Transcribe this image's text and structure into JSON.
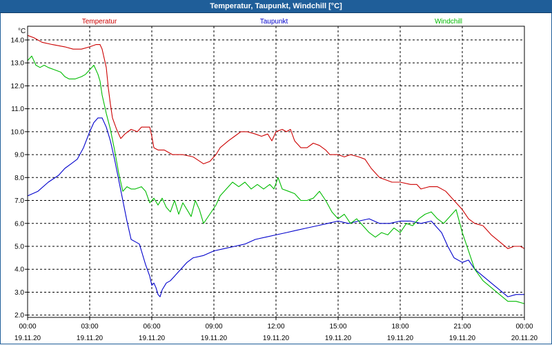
{
  "window": {
    "title": "Temperatur, Taupunkt, Windchill [°C]"
  },
  "chart_data": {
    "type": "line",
    "title": "Temperatur, Taupunkt, Windchill [°C]",
    "ylabel": "°C",
    "ylim": [
      1.9,
      14.6
    ],
    "yticks": [
      2.0,
      3.0,
      4.0,
      5.0,
      6.0,
      7.0,
      8.0,
      9.0,
      10.0,
      11.0,
      12.0,
      13.0,
      14.0
    ],
    "xlim": [
      0,
      24
    ],
    "xticks": [
      {
        "x": 0,
        "time": "00:00",
        "date": "19.11.20"
      },
      {
        "x": 3,
        "time": "03:00",
        "date": "19.11.20"
      },
      {
        "x": 6,
        "time": "06:00",
        "date": "19.11.20"
      },
      {
        "x": 9,
        "time": "09:00",
        "date": "19.11.20"
      },
      {
        "x": 12,
        "time": "12:00",
        "date": "19.11.20"
      },
      {
        "x": 15,
        "time": "15:00",
        "date": "19.11.20"
      },
      {
        "x": 18,
        "time": "18:00",
        "date": "19.11.20"
      },
      {
        "x": 21,
        "time": "21:00",
        "date": "19.11.20"
      },
      {
        "x": 24,
        "time": "00:00",
        "date": "20.11.20"
      }
    ],
    "grid": true,
    "series": [
      {
        "name": "Temperatur",
        "color": "#cc0000",
        "points": [
          [
            0,
            14.2
          ],
          [
            0.3,
            14.1
          ],
          [
            0.7,
            13.9
          ],
          [
            1.2,
            13.8
          ],
          [
            1.8,
            13.7
          ],
          [
            2.2,
            13.6
          ],
          [
            2.6,
            13.6
          ],
          [
            3.0,
            13.7
          ],
          [
            3.3,
            13.8
          ],
          [
            3.5,
            13.8
          ],
          [
            3.6,
            13.6
          ],
          [
            3.8,
            12.8
          ],
          [
            3.9,
            11.9
          ],
          [
            4.0,
            11.2
          ],
          [
            4.1,
            10.6
          ],
          [
            4.3,
            10.1
          ],
          [
            4.5,
            9.7
          ],
          [
            4.7,
            9.9
          ],
          [
            5.0,
            10.1
          ],
          [
            5.3,
            10.0
          ],
          [
            5.5,
            10.2
          ],
          [
            5.7,
            10.2
          ],
          [
            5.9,
            10.2
          ],
          [
            6.0,
            9.8
          ],
          [
            6.1,
            9.3
          ],
          [
            6.3,
            9.2
          ],
          [
            6.6,
            9.2
          ],
          [
            7.0,
            9.0
          ],
          [
            7.5,
            9.0
          ],
          [
            8.0,
            8.9
          ],
          [
            8.5,
            8.6
          ],
          [
            8.8,
            8.7
          ],
          [
            9.1,
            9.0
          ],
          [
            9.3,
            9.3
          ],
          [
            9.7,
            9.6
          ],
          [
            10.0,
            9.8
          ],
          [
            10.3,
            10.0
          ],
          [
            10.6,
            10.0
          ],
          [
            11.0,
            9.9
          ],
          [
            11.3,
            9.8
          ],
          [
            11.6,
            9.9
          ],
          [
            11.8,
            9.6
          ],
          [
            12.0,
            10.0
          ],
          [
            12.3,
            10.1
          ],
          [
            12.5,
            10.0
          ],
          [
            12.7,
            10.1
          ],
          [
            12.9,
            9.6
          ],
          [
            13.2,
            9.3
          ],
          [
            13.5,
            9.3
          ],
          [
            13.8,
            9.5
          ],
          [
            14.1,
            9.4
          ],
          [
            14.4,
            9.2
          ],
          [
            14.6,
            9.0
          ],
          [
            15.0,
            9.0
          ],
          [
            15.3,
            8.9
          ],
          [
            15.6,
            9.0
          ],
          [
            16.0,
            8.9
          ],
          [
            16.3,
            8.8
          ],
          [
            16.6,
            8.4
          ],
          [
            17.0,
            8.0
          ],
          [
            17.3,
            7.9
          ],
          [
            17.6,
            7.8
          ],
          [
            18.0,
            7.8
          ],
          [
            18.5,
            7.7
          ],
          [
            18.8,
            7.7
          ],
          [
            19.0,
            7.5
          ],
          [
            19.4,
            7.6
          ],
          [
            19.8,
            7.6
          ],
          [
            20.2,
            7.4
          ],
          [
            20.6,
            7.0
          ],
          [
            21.0,
            6.6
          ],
          [
            21.3,
            6.2
          ],
          [
            21.6,
            6.0
          ],
          [
            22.0,
            5.9
          ],
          [
            22.4,
            5.5
          ],
          [
            22.8,
            5.2
          ],
          [
            23.2,
            4.9
          ],
          [
            23.5,
            5.0
          ],
          [
            23.8,
            5.0
          ],
          [
            24.0,
            4.9
          ]
        ]
      },
      {
        "name": "Taupunkt",
        "color": "#0000cc",
        "points": [
          [
            0,
            7.2
          ],
          [
            0.5,
            7.4
          ],
          [
            1.0,
            7.8
          ],
          [
            1.5,
            8.1
          ],
          [
            1.8,
            8.4
          ],
          [
            2.1,
            8.6
          ],
          [
            2.4,
            8.8
          ],
          [
            2.7,
            9.3
          ],
          [
            3.0,
            10.0
          ],
          [
            3.2,
            10.4
          ],
          [
            3.4,
            10.6
          ],
          [
            3.6,
            10.6
          ],
          [
            3.8,
            10.2
          ],
          [
            4.0,
            9.6
          ],
          [
            4.2,
            8.8
          ],
          [
            4.4,
            7.9
          ],
          [
            4.6,
            7.0
          ],
          [
            4.8,
            6.1
          ],
          [
            5.0,
            5.3
          ],
          [
            5.2,
            5.2
          ],
          [
            5.4,
            5.1
          ],
          [
            5.5,
            4.8
          ],
          [
            5.7,
            4.2
          ],
          [
            5.9,
            3.7
          ],
          [
            6.0,
            3.3
          ],
          [
            6.1,
            3.4
          ],
          [
            6.2,
            3.2
          ],
          [
            6.3,
            2.9
          ],
          [
            6.4,
            2.8
          ],
          [
            6.5,
            3.1
          ],
          [
            6.7,
            3.4
          ],
          [
            6.9,
            3.5
          ],
          [
            7.1,
            3.7
          ],
          [
            7.4,
            4.0
          ],
          [
            7.7,
            4.3
          ],
          [
            8.0,
            4.5
          ],
          [
            8.5,
            4.6
          ],
          [
            9.0,
            4.8
          ],
          [
            9.5,
            4.9
          ],
          [
            10.0,
            5.0
          ],
          [
            10.5,
            5.1
          ],
          [
            11.0,
            5.3
          ],
          [
            11.5,
            5.4
          ],
          [
            12.0,
            5.5
          ],
          [
            12.5,
            5.6
          ],
          [
            13.0,
            5.7
          ],
          [
            13.5,
            5.8
          ],
          [
            14.0,
            5.9
          ],
          [
            14.5,
            6.0
          ],
          [
            15.0,
            6.1
          ],
          [
            15.5,
            6.0
          ],
          [
            16.0,
            6.1
          ],
          [
            16.5,
            6.2
          ],
          [
            17.0,
            6.0
          ],
          [
            17.5,
            6.0
          ],
          [
            18.0,
            6.1
          ],
          [
            18.5,
            6.1
          ],
          [
            19.0,
            6.0
          ],
          [
            19.5,
            6.1
          ],
          [
            20.0,
            5.6
          ],
          [
            20.3,
            5.0
          ],
          [
            20.6,
            4.5
          ],
          [
            21.0,
            4.3
          ],
          [
            21.3,
            4.4
          ],
          [
            21.6,
            4.0
          ],
          [
            22.0,
            3.7
          ],
          [
            22.4,
            3.4
          ],
          [
            22.8,
            3.1
          ],
          [
            23.2,
            2.8
          ],
          [
            23.6,
            2.9
          ],
          [
            24.0,
            2.9
          ]
        ]
      },
      {
        "name": "Windchill",
        "color": "#00bb00",
        "points": [
          [
            0,
            13.1
          ],
          [
            0.2,
            13.3
          ],
          [
            0.4,
            12.9
          ],
          [
            0.6,
            12.8
          ],
          [
            0.8,
            12.9
          ],
          [
            1.0,
            12.8
          ],
          [
            1.3,
            12.7
          ],
          [
            1.6,
            12.6
          ],
          [
            1.8,
            12.4
          ],
          [
            2.0,
            12.3
          ],
          [
            2.3,
            12.3
          ],
          [
            2.6,
            12.4
          ],
          [
            2.8,
            12.5
          ],
          [
            3.0,
            12.7
          ],
          [
            3.2,
            12.9
          ],
          [
            3.4,
            12.5
          ],
          [
            3.5,
            12.2
          ],
          [
            3.6,
            11.6
          ],
          [
            3.8,
            10.8
          ],
          [
            4.0,
            10.1
          ],
          [
            4.2,
            9.2
          ],
          [
            4.4,
            8.2
          ],
          [
            4.6,
            7.4
          ],
          [
            4.8,
            7.6
          ],
          [
            5.0,
            7.5
          ],
          [
            5.2,
            7.5
          ],
          [
            5.5,
            7.6
          ],
          [
            5.7,
            7.4
          ],
          [
            5.9,
            6.9
          ],
          [
            6.1,
            7.1
          ],
          [
            6.3,
            6.8
          ],
          [
            6.5,
            7.1
          ],
          [
            6.7,
            6.7
          ],
          [
            6.9,
            6.5
          ],
          [
            7.1,
            7.0
          ],
          [
            7.3,
            6.4
          ],
          [
            7.5,
            6.9
          ],
          [
            7.7,
            6.6
          ],
          [
            7.9,
            6.3
          ],
          [
            8.1,
            7.0
          ],
          [
            8.3,
            6.6
          ],
          [
            8.5,
            6.0
          ],
          [
            8.8,
            6.4
          ],
          [
            9.1,
            6.8
          ],
          [
            9.3,
            7.2
          ],
          [
            9.6,
            7.5
          ],
          [
            9.9,
            7.8
          ],
          [
            10.2,
            7.6
          ],
          [
            10.5,
            7.8
          ],
          [
            10.8,
            7.5
          ],
          [
            11.1,
            7.7
          ],
          [
            11.4,
            7.5
          ],
          [
            11.7,
            7.7
          ],
          [
            11.9,
            7.5
          ],
          [
            12.1,
            8.0
          ],
          [
            12.3,
            7.5
          ],
          [
            12.6,
            7.4
          ],
          [
            12.9,
            7.3
          ],
          [
            13.2,
            7.0
          ],
          [
            13.5,
            7.0
          ],
          [
            13.8,
            7.1
          ],
          [
            14.1,
            7.4
          ],
          [
            14.4,
            7.0
          ],
          [
            14.7,
            6.5
          ],
          [
            15.0,
            6.2
          ],
          [
            15.3,
            6.4
          ],
          [
            15.6,
            6.0
          ],
          [
            15.9,
            6.2
          ],
          [
            16.2,
            5.9
          ],
          [
            16.5,
            5.6
          ],
          [
            16.8,
            5.4
          ],
          [
            17.1,
            5.6
          ],
          [
            17.4,
            5.5
          ],
          [
            17.7,
            5.8
          ],
          [
            18.0,
            5.6
          ],
          [
            18.3,
            6.0
          ],
          [
            18.6,
            5.9
          ],
          [
            18.9,
            6.2
          ],
          [
            19.2,
            6.4
          ],
          [
            19.5,
            6.5
          ],
          [
            19.8,
            6.2
          ],
          [
            20.1,
            6.0
          ],
          [
            20.4,
            6.3
          ],
          [
            20.7,
            6.6
          ],
          [
            21.0,
            5.6
          ],
          [
            21.3,
            4.8
          ],
          [
            21.6,
            4.0
          ],
          [
            22.0,
            3.5
          ],
          [
            22.4,
            3.2
          ],
          [
            22.8,
            2.9
          ],
          [
            23.2,
            2.6
          ],
          [
            23.6,
            2.6
          ],
          [
            24.0,
            2.5
          ]
        ]
      }
    ]
  }
}
